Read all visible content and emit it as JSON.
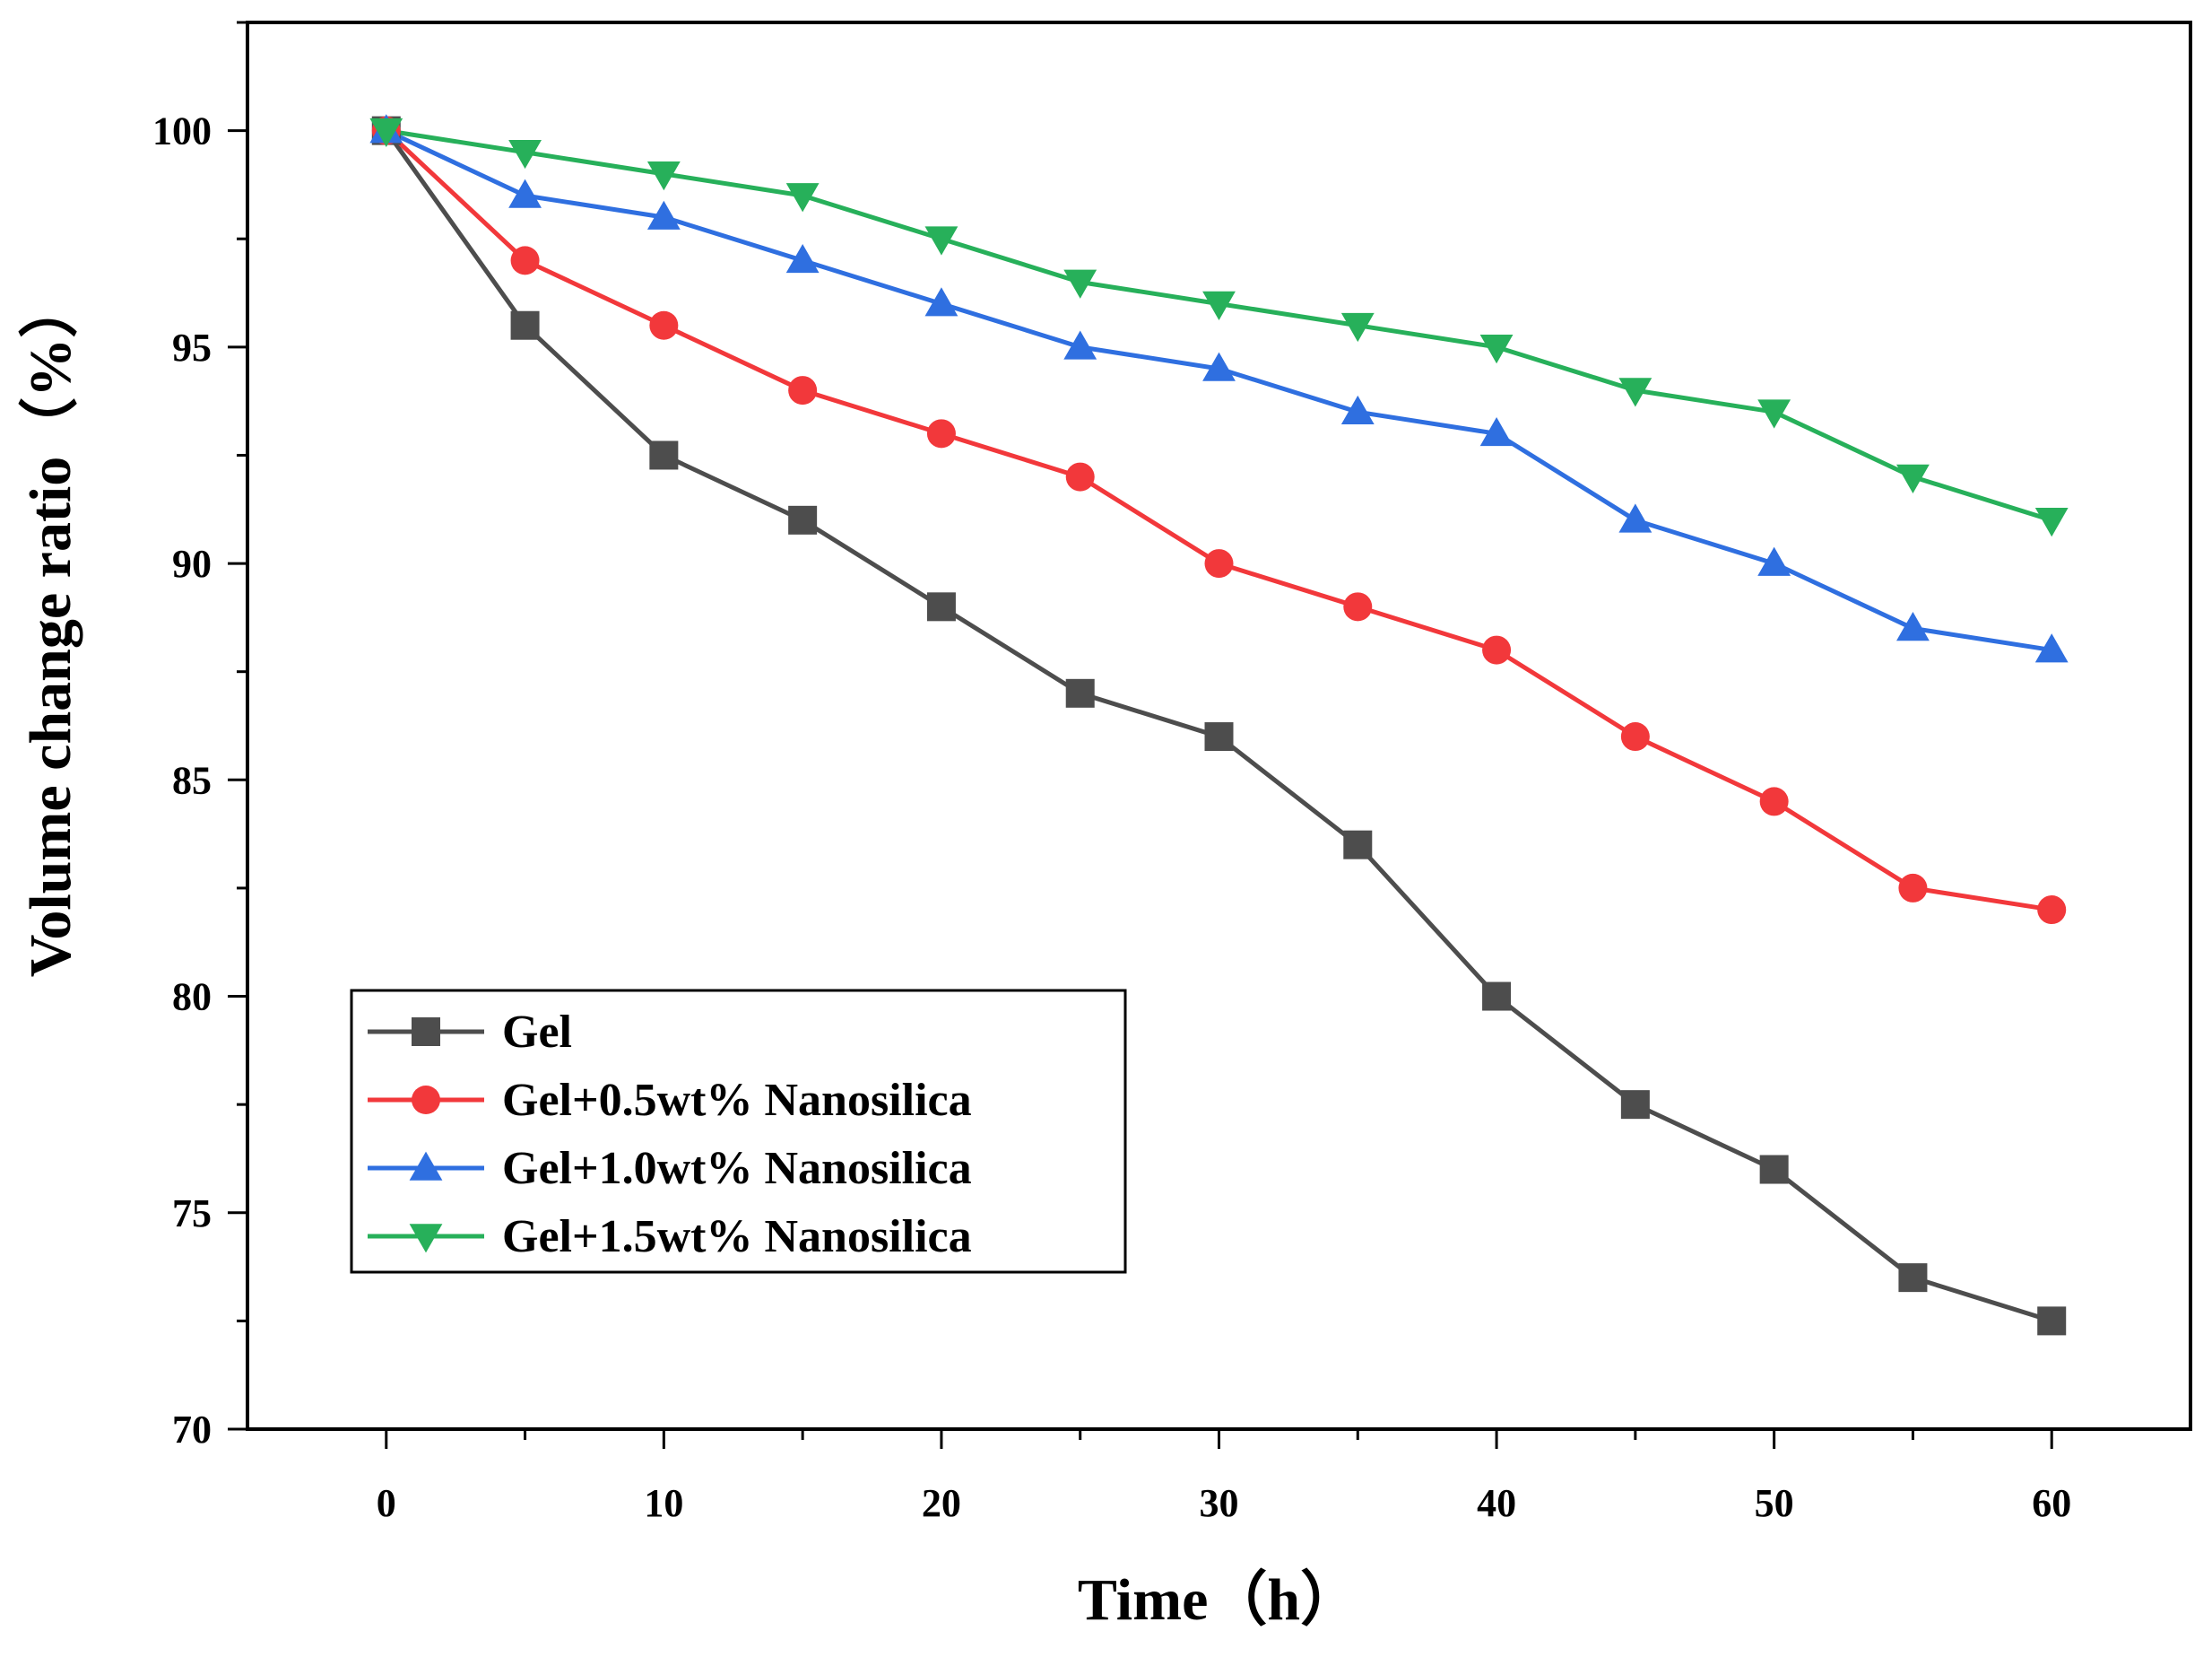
{
  "chart_data": {
    "type": "line",
    "xlabel": "Time（h）",
    "ylabel": "Volume change ratio（%）",
    "xlim": [
      -5,
      65
    ],
    "ylim": [
      70,
      102.5
    ],
    "xticks": [
      0,
      10,
      20,
      30,
      40,
      50,
      60
    ],
    "yticks": [
      70,
      75,
      80,
      85,
      90,
      95,
      100
    ],
    "x": [
      0,
      5,
      10,
      15,
      20,
      25,
      30,
      35,
      40,
      45,
      50,
      55,
      60
    ],
    "grid": false,
    "legend_position": "bottom-left",
    "series": [
      {
        "name": "Gel",
        "color": "#4d4d4d",
        "marker": "square",
        "values": [
          100,
          95.5,
          92.5,
          91,
          89,
          87,
          86,
          83.5,
          80,
          77.5,
          76,
          73.5,
          72.5
        ]
      },
      {
        "name": "Gel+0.5wt% Nanosilica",
        "color": "#f2383b",
        "marker": "circle",
        "values": [
          100,
          97,
          95.5,
          94,
          93,
          92,
          90,
          89,
          88,
          86,
          84.5,
          82.5,
          82
        ]
      },
      {
        "name": "Gel+1.0wt% Nanosilica",
        "color": "#2f6fe0",
        "marker": "triangle-up",
        "values": [
          100,
          98.5,
          98,
          97,
          96,
          95,
          94.5,
          93.5,
          93,
          91,
          90,
          88.5,
          88
        ]
      },
      {
        "name": "Gel+1.5wt% Nanosilica",
        "color": "#27b05a",
        "marker": "triangle-down",
        "values": [
          100,
          99.5,
          99,
          98.5,
          97.5,
          96.5,
          96,
          95.5,
          95,
          94,
          93.5,
          92,
          91
        ]
      }
    ]
  }
}
